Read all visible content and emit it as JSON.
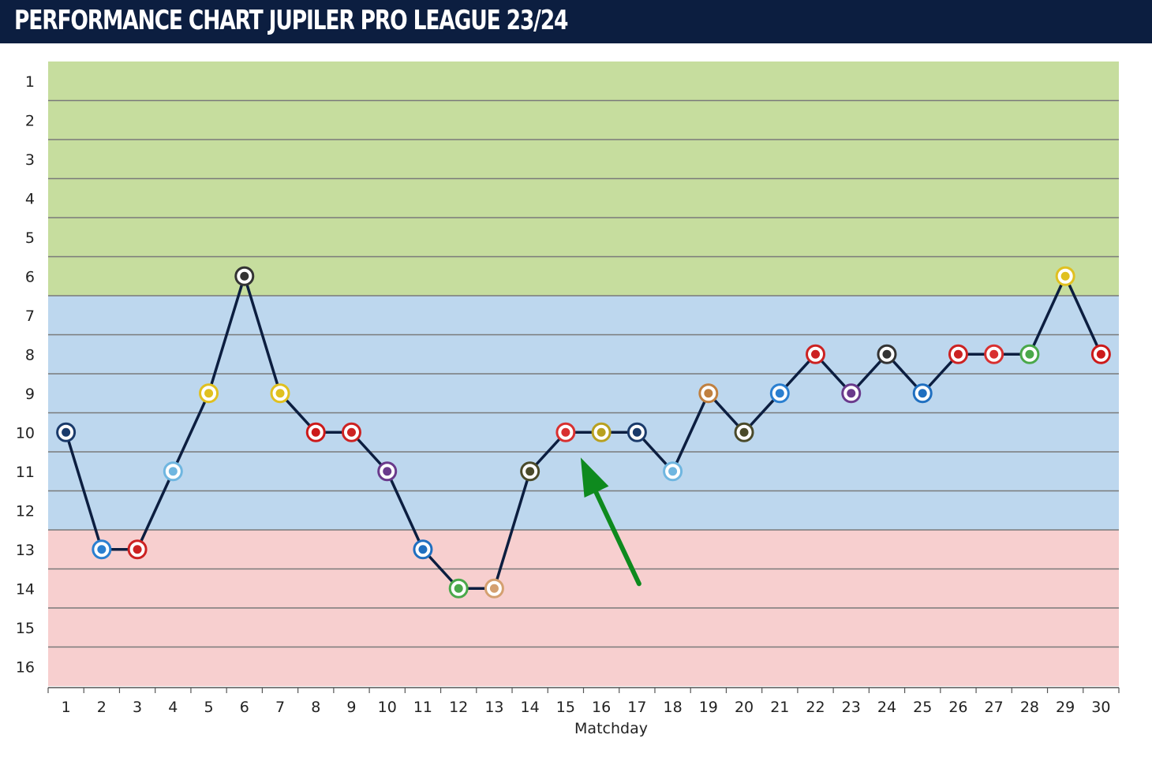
{
  "header": {
    "title": "PERFORMANCE CHART JUPILER PRO LEAGUE 23/24"
  },
  "colors": {
    "header_bg": "#0c1e40",
    "zone_top6": "#c6dd9e",
    "zone_mid": "#bdd7ee",
    "zone_bottom": "#f7cfcf",
    "line": "#0c1e40",
    "arrow": "#0e8a1e"
  },
  "chart_data": {
    "type": "line",
    "title": "",
    "xlabel": "Matchday",
    "ylabel": "",
    "x": [
      1,
      2,
      3,
      4,
      5,
      6,
      7,
      8,
      9,
      10,
      11,
      12,
      13,
      14,
      15,
      16,
      17,
      18,
      19,
      20,
      21,
      22,
      23,
      24,
      25,
      26,
      27,
      28,
      29,
      30
    ],
    "y_ticks": [
      1,
      2,
      3,
      4,
      5,
      6,
      7,
      8,
      9,
      10,
      11,
      12,
      13,
      14,
      15,
      16
    ],
    "ylim": [
      1,
      16
    ],
    "y_inverted": true,
    "grid": true,
    "zones": [
      {
        "from": 1,
        "to": 6,
        "color": "#c6dd9e"
      },
      {
        "from": 7,
        "to": 12,
        "color": "#bdd7ee"
      },
      {
        "from": 13,
        "to": 16,
        "color": "#f7cfcf"
      }
    ],
    "series": [
      {
        "values": [
          10,
          13,
          13,
          11,
          9,
          6,
          9,
          10,
          10,
          11,
          13,
          14,
          14,
          11,
          10,
          10,
          10,
          11,
          9,
          10,
          9,
          8,
          9,
          8,
          9,
          8,
          8,
          8,
          6,
          8
        ],
        "markers": [
          {
            "color": "#1a3a6a"
          },
          {
            "color": "#2a7fd0"
          },
          {
            "color": "#cc2222"
          },
          {
            "color": "#6fb6e0"
          },
          {
            "color": "#e0c020"
          },
          {
            "color": "#333333"
          },
          {
            "color": "#e0c020"
          },
          {
            "color": "#cc1a1a"
          },
          {
            "color": "#cc2222"
          },
          {
            "color": "#6a3a8c"
          },
          {
            "color": "#1f6fc0"
          },
          {
            "color": "#4aa84a"
          },
          {
            "color": "#d4a070"
          },
          {
            "color": "#4a4a2a"
          },
          {
            "color": "#d83030"
          },
          {
            "color": "#b8a020"
          },
          {
            "color": "#1a3a6a"
          },
          {
            "color": "#6fb6e0"
          },
          {
            "color": "#c08040"
          },
          {
            "color": "#4a4a2a"
          },
          {
            "color": "#2a7fd0"
          },
          {
            "color": "#cc2222"
          },
          {
            "color": "#6a3a8c"
          },
          {
            "color": "#333333"
          },
          {
            "color": "#1f6fc0"
          },
          {
            "color": "#cc2222"
          },
          {
            "color": "#d83030"
          },
          {
            "color": "#4aa84a"
          },
          {
            "color": "#e0c020"
          },
          {
            "color": "#cc1a1a"
          }
        ]
      }
    ],
    "annotations": [
      {
        "type": "arrow",
        "color": "#0e8a1e",
        "points_to_matchday": 15
      }
    ]
  }
}
